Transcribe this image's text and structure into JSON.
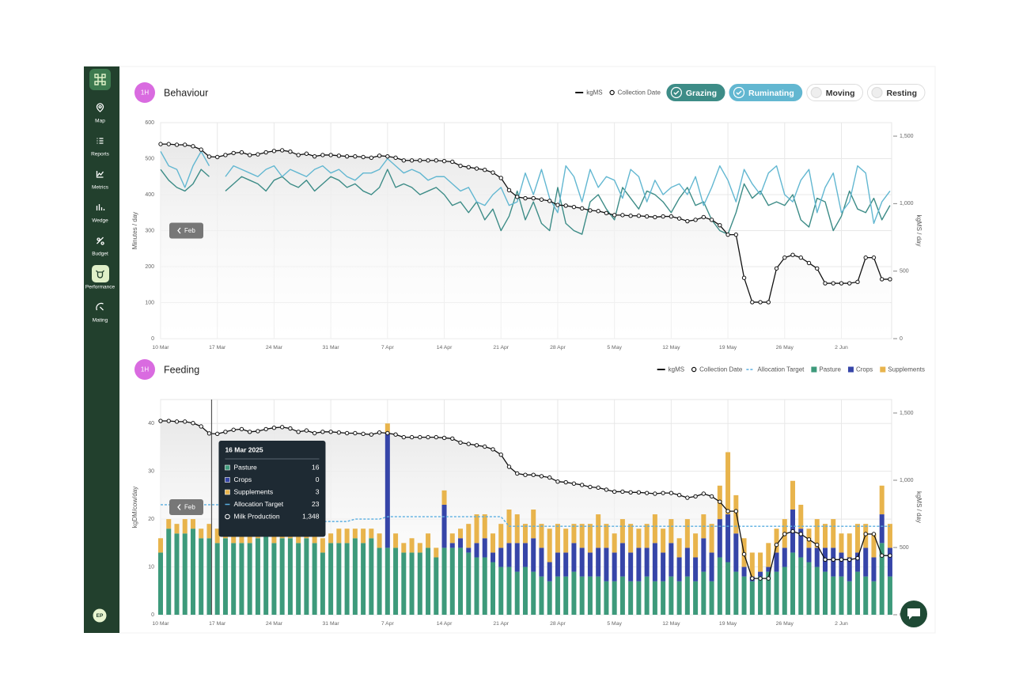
{
  "sidebar": {
    "items": [
      {
        "label": "Map"
      },
      {
        "label": "Reports"
      },
      {
        "label": "Metrics"
      },
      {
        "label": "Wedge"
      },
      {
        "label": "Budget"
      },
      {
        "label": "Performance",
        "active": true
      },
      {
        "label": "Mating"
      }
    ],
    "avatar": "EP"
  },
  "chart_data": [
    {
      "type": "line",
      "badge": "1H",
      "title": "Behaviour",
      "back_button": "Feb",
      "y_label": "Minutes / day",
      "y2_label": "kgMS / day",
      "grid": true,
      "categories": [
        "10 Mar",
        null,
        null,
        null,
        null,
        null,
        null,
        "17 Mar",
        null,
        null,
        null,
        null,
        null,
        null,
        "24 Mar",
        null,
        null,
        null,
        null,
        null,
        null,
        "31 Mar",
        null,
        null,
        null,
        null,
        null,
        null,
        "7 Apr",
        null,
        null,
        null,
        null,
        null,
        null,
        "14 Apr",
        null,
        null,
        null,
        null,
        null,
        null,
        "21 Apr",
        null,
        null,
        null,
        null,
        null,
        null,
        "28 Apr",
        null,
        null,
        null,
        null,
        null,
        null,
        "5 May",
        null,
        null,
        null,
        null,
        null,
        null,
        "12 May",
        null,
        null,
        null,
        null,
        null,
        null,
        "19 May",
        null,
        null,
        null,
        null,
        null,
        null,
        "26 May",
        null,
        null,
        null,
        null,
        null,
        null,
        "2 Jun",
        null,
        null,
        null,
        null,
        null,
        null
      ],
      "ylim": [
        0,
        600
      ],
      "yticks": [
        0,
        100,
        200,
        300,
        400,
        500,
        600
      ],
      "y2lim": [
        0,
        1600
      ],
      "y2ticks": [
        0,
        500,
        {
          "value": 1000,
          "label": "1,000"
        },
        {
          "value": 1500,
          "label": "1,500"
        }
      ],
      "series": [
        {
          "name": "kgMS",
          "marker_label": "Collection Date",
          "color": "#111111",
          "axis": "y2",
          "values": [
            1441,
            1441,
            1436,
            1436,
            1425,
            1400,
            1348,
            1345,
            1360,
            1375,
            1380,
            1360,
            1365,
            1380,
            1390,
            1395,
            1385,
            1360,
            1370,
            1350,
            1360,
            1360,
            1355,
            1350,
            1350,
            1345,
            1340,
            1355,
            1350,
            1340,
            1320,
            1320,
            1320,
            1320,
            1320,
            1315,
            1310,
            1280,
            1270,
            1260,
            1250,
            1230,
            1190,
            1100,
            1050,
            1040,
            1040,
            1030,
            1020,
            990,
            985,
            975,
            965,
            950,
            945,
            930,
            915,
            915,
            910,
            910,
            905,
            900,
            905,
            905,
            890,
            870,
            880,
            900,
            880,
            840,
            770,
            770,
            450,
            270,
            270,
            270,
            520,
            600,
            620,
            600,
            560,
            520,
            410,
            410,
            410,
            410,
            420,
            600,
            600,
            440,
            440
          ]
        },
        {
          "name": "Grazing",
          "color": "#3d8c87",
          "values": [
            470,
            440,
            420,
            410,
            430,
            470,
            450,
            null,
            410,
            430,
            450,
            440,
            430,
            410,
            440,
            450,
            430,
            420,
            440,
            410,
            430,
            450,
            440,
            420,
            430,
            410,
            400,
            420,
            470,
            420,
            430,
            420,
            400,
            410,
            420,
            400,
            370,
            380,
            350,
            380,
            330,
            360,
            300,
            340,
            410,
            330,
            380,
            320,
            300,
            420,
            320,
            300,
            290,
            380,
            400,
            360,
            330,
            420,
            390,
            360,
            410,
            400,
            380,
            350,
            390,
            420,
            370,
            380,
            330,
            300,
            290,
            350,
            430,
            390,
            410,
            370,
            380,
            370,
            400,
            330,
            310,
            390,
            380,
            300,
            340,
            410,
            360,
            350,
            390,
            330,
            370
          ]
        },
        {
          "name": "Ruminating",
          "color": "#62b7d1",
          "values": [
            520,
            480,
            470,
            420,
            480,
            520,
            480,
            null,
            450,
            480,
            470,
            460,
            450,
            470,
            480,
            450,
            470,
            460,
            450,
            470,
            480,
            460,
            470,
            450,
            440,
            460,
            460,
            470,
            500,
            480,
            460,
            470,
            460,
            440,
            450,
            450,
            430,
            410,
            420,
            380,
            370,
            400,
            420,
            370,
            380,
            460,
            400,
            470,
            390,
            350,
            480,
            450,
            380,
            470,
            420,
            450,
            440,
            390,
            470,
            450,
            380,
            440,
            400,
            420,
            430,
            400,
            450,
            370,
            420,
            480,
            440,
            380,
            470,
            430,
            400,
            460,
            480,
            400,
            380,
            440,
            470,
            350,
            420,
            460,
            350,
            380,
            480,
            460,
            320,
            380,
            410
          ]
        }
      ],
      "inactive_series": [
        "Moving",
        "Resting"
      ]
    },
    {
      "type": "bar",
      "stacked": true,
      "badge": "1H",
      "title": "Feeding",
      "back_button": "Feb",
      "y_label": "kgDM/cow/day",
      "y2_label": "kgMS / day",
      "grid": true,
      "categories": [
        "10 Mar",
        null,
        null,
        null,
        null,
        null,
        null,
        "17 Mar",
        null,
        null,
        null,
        null,
        null,
        null,
        "24 Mar",
        null,
        null,
        null,
        null,
        null,
        null,
        "31 Mar",
        null,
        null,
        null,
        null,
        null,
        null,
        "7 Apr",
        null,
        null,
        null,
        null,
        null,
        null,
        "14 Apr",
        null,
        null,
        null,
        null,
        null,
        null,
        "21 Apr",
        null,
        null,
        null,
        null,
        null,
        null,
        "28 Apr",
        null,
        null,
        null,
        null,
        null,
        null,
        "5 May",
        null,
        null,
        null,
        null,
        null,
        null,
        "12 May",
        null,
        null,
        null,
        null,
        null,
        null,
        "19 May",
        null,
        null,
        null,
        null,
        null,
        null,
        "26 May",
        null,
        null,
        null,
        null,
        null,
        null,
        "2 Jun",
        null,
        null,
        null,
        null,
        null,
        null
      ],
      "ylim": [
        0,
        45
      ],
      "yticks": [
        0,
        10,
        20,
        30,
        40
      ],
      "y2lim": [
        0,
        1600
      ],
      "y2ticks": [
        0,
        500,
        {
          "value": 1000,
          "label": "1,000"
        },
        {
          "value": 1500,
          "label": "1,500"
        }
      ],
      "series": [
        {
          "name": "kgMS",
          "type": "line",
          "marker_label": "Collection Date",
          "color": "#111111",
          "axis": "y2",
          "values": [
            1441,
            1441,
            1436,
            1436,
            1425,
            1400,
            1348,
            1345,
            1360,
            1375,
            1380,
            1360,
            1365,
            1380,
            1390,
            1395,
            1385,
            1360,
            1370,
            1350,
            1360,
            1360,
            1355,
            1350,
            1350,
            1345,
            1340,
            1355,
            1350,
            1340,
            1320,
            1320,
            1320,
            1320,
            1320,
            1315,
            1310,
            1280,
            1270,
            1260,
            1250,
            1230,
            1190,
            1100,
            1050,
            1040,
            1040,
            1030,
            1020,
            990,
            985,
            975,
            965,
            950,
            945,
            930,
            915,
            915,
            910,
            910,
            905,
            900,
            905,
            905,
            890,
            870,
            880,
            900,
            880,
            840,
            770,
            770,
            450,
            270,
            270,
            270,
            520,
            600,
            620,
            600,
            560,
            520,
            410,
            410,
            410,
            410,
            420,
            600,
            600,
            440,
            440
          ]
        },
        {
          "name": "Allocation Target",
          "type": "dashed",
          "color": "#5aaee0",
          "values": [
            23,
            23,
            23,
            23,
            23,
            23,
            23,
            23,
            23,
            23,
            23,
            23,
            23,
            23,
            19.5,
            19.5,
            19.5,
            19.5,
            19.5,
            19.5,
            19.5,
            19.5,
            19.5,
            19.5,
            20,
            20,
            20,
            20,
            20.5,
            20.5,
            20.5,
            20.5,
            20.5,
            20.5,
            20.5,
            20.5,
            20.5,
            20.5,
            20.5,
            20.5,
            20.5,
            20.5,
            20.5,
            18.5,
            18.5,
            18.5,
            18.5,
            18.5,
            18.5,
            18.5,
            18.5,
            18.5,
            18.5,
            18.5,
            18.5,
            18.5,
            18.5,
            18.5,
            18.5,
            18.5,
            18.5,
            18.5,
            18.5,
            18.5,
            18.5,
            18.5,
            18.5,
            18.5,
            18.5,
            18.5,
            18.5,
            18.5,
            18.5,
            18.5,
            18.5,
            18.5,
            18.5,
            18.5,
            18.5,
            18.5,
            18.5,
            18.5,
            18.5,
            18.5,
            18.5,
            18.5,
            18.5,
            18.5,
            18.5,
            18.5,
            18.5
          ]
        },
        {
          "name": "Pasture",
          "type": "bar",
          "color": "#3d9a7b",
          "values": [
            13,
            18,
            17,
            17,
            18,
            16,
            16,
            15,
            16,
            15,
            15,
            15,
            16,
            17,
            15,
            16,
            16,
            15,
            16,
            15,
            13,
            15,
            15,
            15,
            16,
            15,
            16,
            14,
            14,
            14,
            13,
            13,
            13,
            14,
            12,
            14,
            14,
            14,
            13,
            12,
            12,
            11,
            10,
            10,
            9,
            10,
            9,
            8,
            7,
            8,
            8,
            9,
            8,
            8,
            8,
            7,
            7,
            8,
            7,
            7,
            8,
            7,
            7,
            8,
            7,
            8,
            7,
            9,
            7,
            12,
            11,
            9,
            8,
            7,
            8,
            9,
            9,
            10,
            13,
            12,
            11,
            10,
            9,
            8,
            8,
            7,
            9,
            8,
            7,
            15,
            8
          ]
        },
        {
          "name": "Crops",
          "type": "bar",
          "color": "#3645a8",
          "values": [
            0,
            0,
            0,
            0,
            0,
            0,
            0,
            0,
            0,
            0,
            0,
            0,
            0,
            0,
            0,
            0,
            0,
            0,
            0,
            0,
            0,
            0,
            0,
            0,
            0,
            0,
            0,
            0,
            24,
            0,
            0,
            0,
            0,
            0,
            0,
            9,
            1,
            2,
            1,
            3,
            4,
            2,
            4,
            5,
            6,
            5,
            7,
            6,
            4,
            5,
            5,
            6,
            6,
            5,
            6,
            7,
            6,
            7,
            6,
            7,
            6,
            8,
            6,
            7,
            5,
            6,
            5,
            7,
            6,
            8,
            10,
            8,
            2,
            1,
            1,
            1,
            4,
            4,
            9,
            6,
            3,
            4,
            5,
            6,
            5,
            5,
            4,
            6,
            5,
            6,
            6
          ]
        },
        {
          "name": "Supplements",
          "type": "bar",
          "color": "#e8b44c",
          "values": [
            3,
            2,
            2,
            3,
            2,
            2,
            3,
            3,
            3,
            4,
            3,
            2,
            4,
            3,
            3,
            2,
            3,
            3,
            2,
            2,
            3,
            2,
            3,
            3,
            2,
            3,
            2,
            3,
            2,
            3,
            2,
            3,
            2,
            3,
            2,
            3,
            2,
            2,
            5,
            6,
            5,
            4,
            5,
            7,
            6,
            4,
            6,
            5,
            7,
            6,
            5,
            4,
            5,
            6,
            7,
            5,
            4,
            5,
            6,
            4,
            5,
            6,
            5,
            5,
            4,
            6,
            5,
            5,
            6,
            7,
            13,
            8,
            6,
            5,
            4,
            5,
            5,
            6,
            6,
            5,
            4,
            6,
            5,
            6,
            4,
            5,
            6,
            5,
            5,
            6,
            5
          ]
        }
      ],
      "tooltip": {
        "title": "16 Mar 2025",
        "rows": [
          {
            "label": "Pasture",
            "value": "16",
            "marker": "square",
            "color": "#3d9a7b"
          },
          {
            "label": "Crops",
            "value": "0",
            "marker": "square",
            "color": "#3645a8"
          },
          {
            "label": "Supplements",
            "value": "3",
            "marker": "square",
            "color": "#e8b44c"
          },
          {
            "label": "Allocation Target",
            "value": "23",
            "marker": "dash",
            "color": "#5aaee0"
          },
          {
            "label": "Milk Production",
            "value": "1,348",
            "marker": "circle",
            "color": "#ffffff"
          }
        ]
      }
    }
  ]
}
